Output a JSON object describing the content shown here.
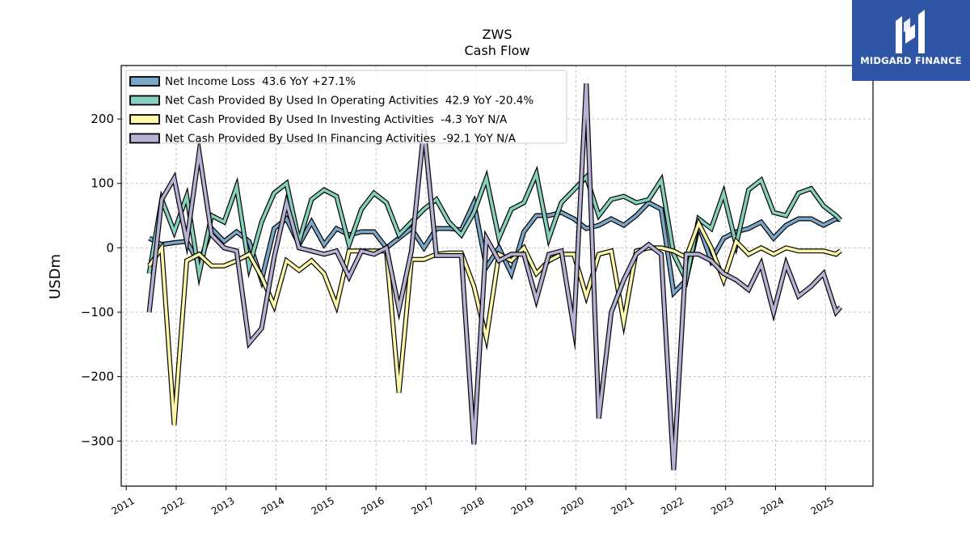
{
  "logo": {
    "text": "MIDGARD FINANCE"
  },
  "chart_data": {
    "type": "line",
    "title": "ZWS",
    "subtitle": "Cash Flow",
    "ylabel": "USDm",
    "xlabel": "",
    "ylim": [
      -370,
      283
    ],
    "xlim": [
      2010.9,
      2025.95
    ],
    "yticks": [
      200,
      100,
      0,
      -100,
      -200,
      -300
    ],
    "ytick_labels": [
      "200",
      "100",
      "0",
      "−100",
      "−200",
      "−300"
    ],
    "xticks": [
      2011,
      2012,
      2013,
      2014,
      2015,
      2016,
      2017,
      2018,
      2019,
      2020,
      2021,
      2022,
      2023,
      2024,
      2025
    ],
    "xtick_labels": [
      "2011",
      "2012",
      "2013",
      "2014",
      "2015",
      "2016",
      "2017",
      "2018",
      "2019",
      "2020",
      "2021",
      "2022",
      "2023",
      "2024",
      "2025"
    ],
    "grid": true,
    "legend_position": "top-left",
    "series": [
      {
        "name": "Net Income Loss  43.6 YoY +27.1%",
        "color": "#7aa7c7",
        "x": [
          2011.46,
          2011.71,
          2011.96,
          2012.21,
          2012.46,
          2012.71,
          2012.96,
          2013.21,
          2013.46,
          2013.71,
          2013.96,
          2014.21,
          2014.46,
          2014.71,
          2014.96,
          2015.21,
          2015.46,
          2015.71,
          2015.96,
          2016.21,
          2016.46,
          2016.71,
          2016.96,
          2017.21,
          2017.46,
          2017.71,
          2017.96,
          2018.21,
          2018.46,
          2018.71,
          2018.96,
          2019.21,
          2019.46,
          2019.71,
          2019.96,
          2020.21,
          2020.46,
          2020.71,
          2020.96,
          2021.21,
          2021.46,
          2021.71,
          2021.96,
          2022.21,
          2022.46,
          2022.71,
          2022.96,
          2023.21,
          2023.46,
          2023.71,
          2023.96,
          2024.21,
          2024.46,
          2024.71,
          2024.96,
          2025.21,
          2025.3
        ],
        "y": [
          15,
          5,
          8,
          10,
          -25,
          30,
          10,
          25,
          10,
          -50,
          30,
          45,
          5,
          40,
          5,
          30,
          20,
          25,
          25,
          0,
          15,
          30,
          0,
          30,
          30,
          28,
          70,
          -30,
          0,
          -40,
          25,
          50,
          50,
          55,
          45,
          30,
          35,
          45,
          35,
          50,
          70,
          60,
          -70,
          -50,
          35,
          -20,
          15,
          25,
          30,
          40,
          15,
          35,
          45,
          45,
          35,
          45,
          43.6
        ]
      },
      {
        "name": "Net Cash Provided By Used In Operating Activities  42.9 YoY -20.4%",
        "color": "#86d0bd",
        "x": [
          2011.46,
          2011.71,
          2011.96,
          2012.21,
          2012.46,
          2012.71,
          2012.96,
          2013.21,
          2013.46,
          2013.71,
          2013.96,
          2014.21,
          2014.46,
          2014.71,
          2014.96,
          2015.21,
          2015.46,
          2015.71,
          2015.96,
          2016.21,
          2016.46,
          2016.71,
          2016.96,
          2017.21,
          2017.46,
          2017.71,
          2017.96,
          2018.21,
          2018.46,
          2018.71,
          2018.96,
          2019.21,
          2019.46,
          2019.71,
          2019.96,
          2020.21,
          2020.46,
          2020.71,
          2020.96,
          2021.21,
          2021.46,
          2021.71,
          2021.96,
          2022.21,
          2022.46,
          2022.71,
          2022.96,
          2023.21,
          2023.46,
          2023.71,
          2023.96,
          2024.21,
          2024.46,
          2024.71,
          2024.96,
          2025.21,
          2025.3
        ],
        "y": [
          -40,
          75,
          25,
          80,
          -40,
          50,
          40,
          95,
          -30,
          40,
          85,
          100,
          10,
          75,
          90,
          80,
          5,
          60,
          85,
          70,
          20,
          40,
          60,
          75,
          40,
          20,
          55,
          108,
          15,
          60,
          70,
          115,
          15,
          70,
          90,
          110,
          50,
          75,
          80,
          70,
          75,
          105,
          -10,
          -50,
          45,
          30,
          85,
          5,
          90,
          105,
          55,
          50,
          85,
          92,
          65,
          50,
          42.9
        ]
      },
      {
        "name": "Net Cash Provided By Used In Investing Activities  -4.3 YoY N/A",
        "color": "#fbf6a8",
        "x": [
          2011.46,
          2011.71,
          2011.96,
          2012.21,
          2012.46,
          2012.71,
          2012.96,
          2013.21,
          2013.46,
          2013.71,
          2013.96,
          2014.21,
          2014.46,
          2014.71,
          2014.96,
          2015.21,
          2015.46,
          2015.71,
          2015.96,
          2016.21,
          2016.46,
          2016.71,
          2016.96,
          2017.21,
          2017.46,
          2017.71,
          2017.96,
          2018.21,
          2018.46,
          2018.71,
          2018.96,
          2019.21,
          2019.46,
          2019.71,
          2019.96,
          2020.21,
          2020.46,
          2020.71,
          2020.96,
          2021.21,
          2021.46,
          2021.71,
          2021.96,
          2022.21,
          2022.46,
          2022.71,
          2022.96,
          2023.21,
          2023.46,
          2023.71,
          2023.96,
          2024.21,
          2024.46,
          2024.71,
          2024.96,
          2025.21,
          2025.3
        ],
        "y": [
          -28,
          0,
          -275,
          -20,
          -10,
          -28,
          -28,
          -20,
          -10,
          -45,
          -90,
          -20,
          -35,
          -20,
          -40,
          -90,
          -5,
          -5,
          -5,
          -5,
          -225,
          -18,
          -18,
          -10,
          -8,
          -8,
          -60,
          -140,
          -10,
          -20,
          0,
          -40,
          -20,
          -10,
          -10,
          -75,
          -10,
          -5,
          -115,
          -5,
          0,
          0,
          -5,
          -15,
          38,
          0,
          -50,
          10,
          -10,
          0,
          -10,
          0,
          -5,
          -5,
          -5,
          -10,
          -4.3
        ]
      },
      {
        "name": "Net Cash Provided By Used In Financing Activities  -92.1 YoY N/A",
        "color": "#b5b2d4",
        "x": [
          2011.46,
          2011.71,
          2011.96,
          2012.21,
          2012.46,
          2012.71,
          2012.96,
          2013.21,
          2013.46,
          2013.71,
          2013.96,
          2014.21,
          2014.46,
          2014.71,
          2014.96,
          2015.21,
          2015.46,
          2015.71,
          2015.96,
          2016.21,
          2016.46,
          2016.71,
          2016.96,
          2017.21,
          2017.46,
          2017.71,
          2017.96,
          2018.21,
          2018.46,
          2018.71,
          2018.96,
          2019.21,
          2019.46,
          2019.71,
          2019.96,
          2020.21,
          2020.46,
          2020.71,
          2020.96,
          2021.21,
          2021.46,
          2021.71,
          2021.96,
          2022.21,
          2022.46,
          2022.71,
          2022.96,
          2023.21,
          2023.46,
          2023.71,
          2023.96,
          2024.21,
          2024.46,
          2024.71,
          2024.96,
          2025.21,
          2025.3
        ],
        "y": [
          -100,
          75,
          108,
          10,
          148,
          20,
          0,
          -5,
          -148,
          -125,
          -15,
          70,
          0,
          -5,
          -10,
          -5,
          -45,
          -5,
          -10,
          0,
          -95,
          -5,
          185,
          -12,
          -12,
          -12,
          -305,
          15,
          -20,
          -10,
          -10,
          -80,
          -10,
          -5,
          -125,
          255,
          -265,
          -100,
          -50,
          -10,
          5,
          -10,
          -345,
          -10,
          -10,
          -20,
          -40,
          -50,
          -65,
          -25,
          -100,
          -25,
          -75,
          -60,
          -40,
          -100,
          -92.1
        ]
      }
    ]
  }
}
